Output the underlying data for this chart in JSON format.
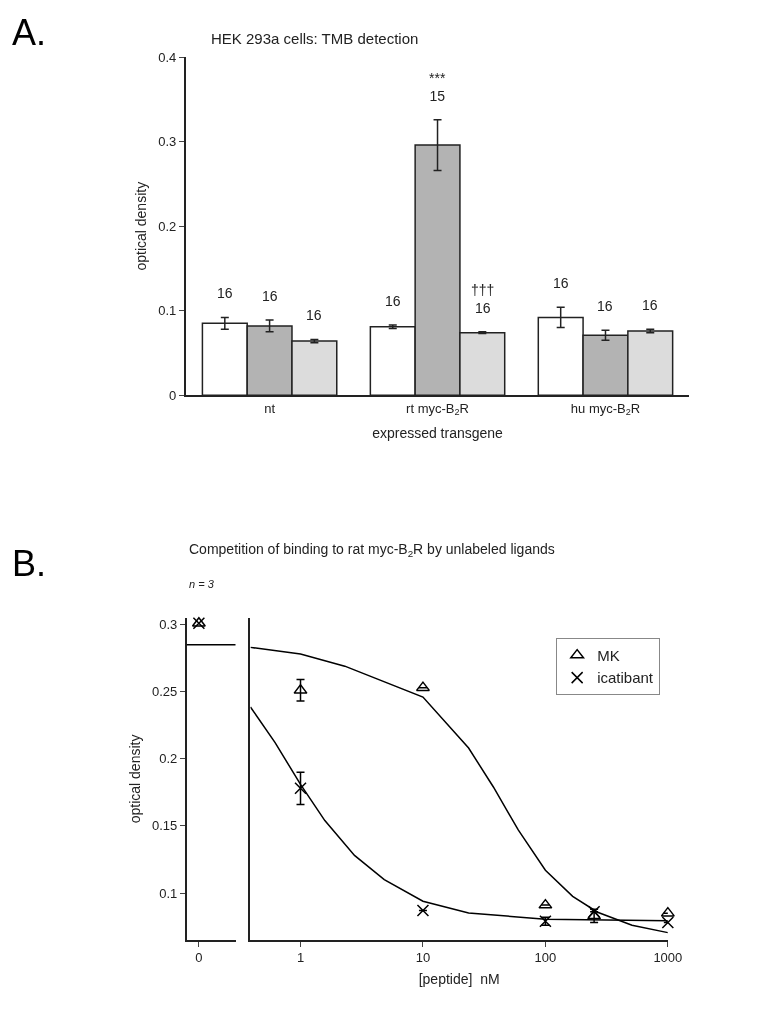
{
  "chart_data": [
    {
      "type": "bar",
      "title": "HEK 293a cells: TMB detection",
      "xlabel": "expressed transgene",
      "ylabel": "optical density",
      "annotations": [
        "A.",
        "16",
        "16",
        "16",
        "16",
        "***\n15",
        "†††\n16",
        "16",
        "16",
        "16"
      ],
      "categories": [
        "nt",
        "rt myc-B$_{2}$R",
        "hu myc-B$_{2}$R"
      ],
      "series": [
        {
          "color": "#ffffff",
          "values": [
            0.085,
            0.081,
            0.092
          ],
          "errors": [
            0.007,
            0.002,
            0.012
          ]
        },
        {
          "color": "#b3b3b3",
          "values": [
            0.082,
            0.296,
            0.071
          ],
          "errors": [
            0.007,
            0.03,
            0.006
          ]
        },
        {
          "color": "#dcdcdc",
          "values": [
            0.064,
            0.074,
            0.076
          ],
          "errors": [
            0.002,
            0.001,
            0.002
          ]
        }
      ],
      "ylim": [
        0,
        0.4
      ],
      "yticks": [
        0,
        0.1,
        0.2,
        0.3,
        0.4
      ]
    },
    {
      "type": "scatter",
      "title": "Competition of binding to rat myc-B$_{2}$R by unlabeled ligands",
      "subtitle": "n = 3",
      "ylabel": "optical density",
      "annotations": [
        "B."
      ],
      "categories": [
        "0"
      ],
      "series": [
        {
          "type": "scatter",
          "color": "#000000",
          "marker": "triangle",
          "values": [
            0.301
          ]
        },
        {
          "type": "scatter",
          "color": "#000000",
          "marker": "cross",
          "values": [
            0.301
          ]
        }
      ],
      "ref_lines": [
        {
          "axis": "y",
          "value": 0.285,
          "color": "#000000"
        }
      ],
      "ylim": [
        0.065,
        0.305
      ],
      "yticks": [
        0.1,
        0.15,
        0.2,
        0.25,
        0.3
      ]
    },
    {
      "type": "scatter",
      "xlabel": "[peptide]  nM",
      "log": "x",
      "x": [
        1,
        10,
        100,
        250,
        1000
      ],
      "series": [
        {
          "type": "scatter",
          "name": "MK",
          "color": "#000000",
          "marker": "triangle",
          "values": [
            0.251,
            0.253,
            0.091,
            0.083,
            0.085
          ],
          "errors": [
            0.008,
            null,
            null,
            0.005,
            null
          ]
        },
        {
          "type": "scatter",
          "name": "icatibant",
          "color": "#000000",
          "marker": "cross",
          "values": [
            0.178,
            0.087,
            0.079,
            0.086,
            0.078
          ],
          "errors": [
            0.012,
            null,
            0.003,
            null,
            null
          ]
        },
        {
          "type": "line",
          "color": "#000000",
          "x": [
            0.39,
            1,
            2.3,
            10,
            23.6,
            37.6,
            60,
            100,
            167,
            267,
            510,
            1000
          ],
          "values": [
            0.283,
            0.278,
            0.269,
            0.246,
            0.208,
            0.179,
            0.147,
            0.117,
            0.0975,
            0.0857,
            0.076,
            0.0705
          ]
        },
        {
          "type": "line",
          "color": "#000000",
          "x": [
            0.39,
            0.62,
            1,
            1.58,
            2.76,
            4.83,
            10,
            23.6,
            100,
            1000
          ],
          "values": [
            0.2386,
            0.212,
            0.181,
            0.154,
            0.128,
            0.11,
            0.0939,
            0.0852,
            0.0805,
            0.0794
          ]
        }
      ],
      "xlim": [
        0.39,
        1000
      ],
      "xticks": [
        1,
        10,
        100,
        1000
      ],
      "ylim": [
        0.065,
        0.305
      ],
      "tick_labels": "x",
      "legend": "top right"
    }
  ]
}
